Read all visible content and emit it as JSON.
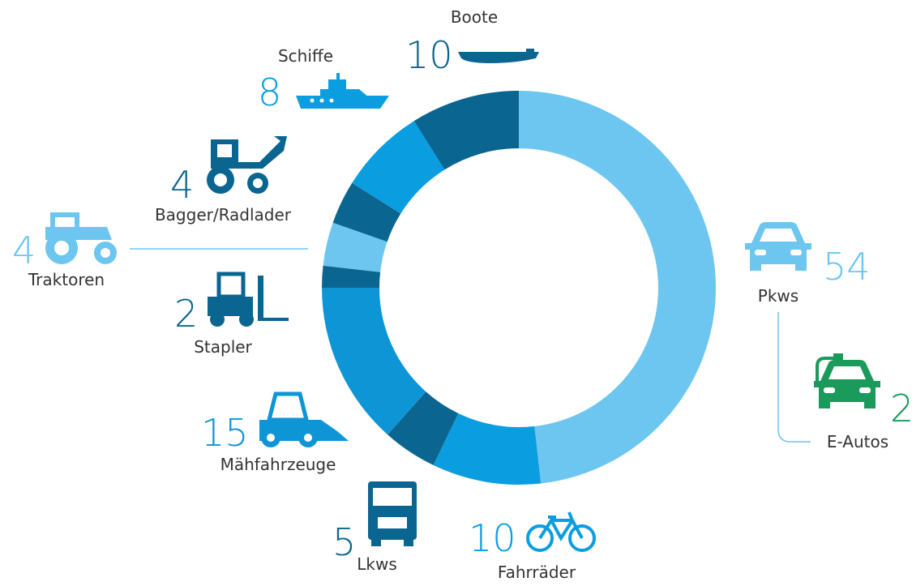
{
  "chart_data": {
    "type": "donut",
    "categories": [
      "Pkws",
      "Fahrräder",
      "Lkws",
      "Mähfahrzeuge",
      "Stapler",
      "Traktoren",
      "Bagger/Radlader",
      "Schiffe",
      "Boote"
    ],
    "values": [
      54,
      10,
      5,
      15,
      2,
      4,
      4,
      8,
      10
    ],
    "colors": [
      "#6cc6f0",
      "#0a9ee0",
      "#0b6591",
      "#0e95d6",
      "#0b6591",
      "#6cc6f0",
      "#0b6591",
      "#0a9ee0",
      "#0b6591"
    ],
    "sub": {
      "name": "E-Autos",
      "value": 2,
      "color": "#1a9a5b"
    }
  }
}
